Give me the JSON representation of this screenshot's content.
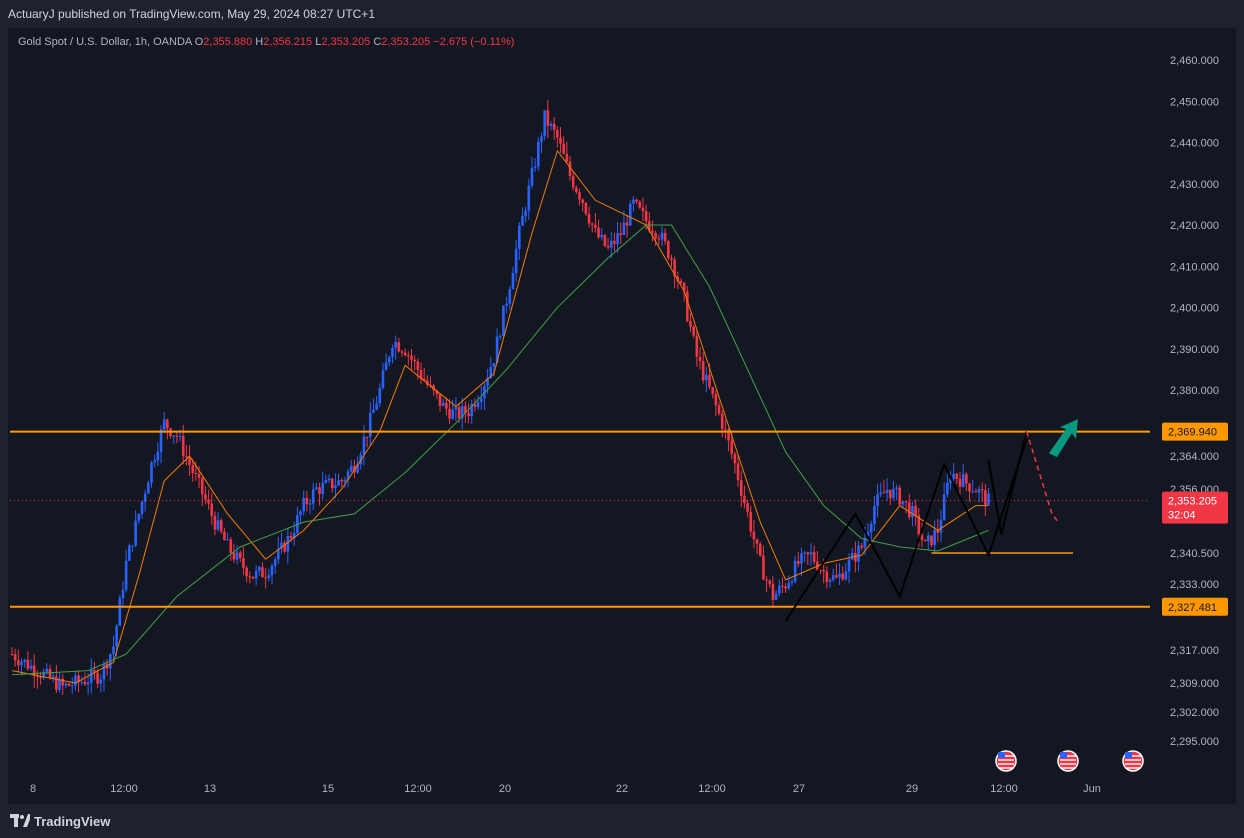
{
  "header": {
    "publisher_line": "ActuaryJ published on TradingView.com, May 29, 2024 08:27 UTC+1"
  },
  "legend": {
    "symbol": "Gold Spot / U.S. Dollar, 1h, OANDA",
    "o_label": "O",
    "o_value": "2,355.880",
    "h_label": "H",
    "h_value": "2,356.215",
    "l_label": "L",
    "l_value": "2,353.205",
    "c_label": "C",
    "c_value": "2,353.205",
    "change": "−2.675 (−0.11%)"
  },
  "footer": {
    "brand": "TradingView"
  },
  "colors": {
    "up": "#2962ff",
    "down": "#f23645",
    "ema_fast": "#f57c00",
    "ema_slow": "#43a047",
    "level": "#ff9800",
    "arrow_up": "#089981"
  },
  "chart_data": {
    "type": "candlestick",
    "title": "Gold Spot / U.S. Dollar, 1h, OANDA",
    "ylim": [
      2290,
      2465
    ],
    "price_axis": [
      {
        "v": 2460,
        "label": "2,460.000"
      },
      {
        "v": 2450,
        "label": "2,450.000"
      },
      {
        "v": 2440,
        "label": "2,440.000"
      },
      {
        "v": 2430,
        "label": "2,430.000"
      },
      {
        "v": 2420,
        "label": "2,420.000"
      },
      {
        "v": 2410,
        "label": "2,410.000"
      },
      {
        "v": 2400,
        "label": "2,400.000"
      },
      {
        "v": 2390,
        "label": "2,390.000"
      },
      {
        "v": 2380,
        "label": "2,380.000"
      },
      {
        "v": 2364,
        "label": "2,364.000"
      },
      {
        "v": 2356,
        "label": "2,356.000"
      },
      {
        "v": 2340.5,
        "label": "2,340.500"
      },
      {
        "v": 2333,
        "label": "2,333.000"
      },
      {
        "v": 2317,
        "label": "2,317.000"
      },
      {
        "v": 2309,
        "label": "2,309.000"
      },
      {
        "v": 2302,
        "label": "2,302.000"
      },
      {
        "v": 2295,
        "label": "2,295.000"
      }
    ],
    "time_axis": [
      "8",
      "12:00",
      "13",
      "15",
      "12:00",
      "20",
      "22",
      "12:00",
      "27",
      "29",
      "12:00",
      "Jun"
    ],
    "levels": [
      {
        "name": "resistance",
        "value": 2369.94,
        "label": "2,369.940"
      },
      {
        "name": "support",
        "value": 2327.481,
        "label": "2,327.481"
      },
      {
        "name": "neckline",
        "value": 2340.5
      }
    ],
    "last_price": {
      "value": 2353.205,
      "label": "2,353.205",
      "countdown": "32:04"
    },
    "price_path": [
      [
        0,
        2316
      ],
      [
        2,
        2314
      ],
      [
        4,
        2312
      ],
      [
        6,
        2310
      ],
      [
        8,
        2308
      ],
      [
        10,
        2309
      ],
      [
        12,
        2310
      ],
      [
        14,
        2311
      ],
      [
        16,
        2318
      ],
      [
        18,
        2338
      ],
      [
        20,
        2350
      ],
      [
        22,
        2362
      ],
      [
        24,
        2372
      ],
      [
        26,
        2369
      ],
      [
        28,
        2362
      ],
      [
        30,
        2355
      ],
      [
        32,
        2348
      ],
      [
        34,
        2342
      ],
      [
        36,
        2338
      ],
      [
        38,
        2335
      ],
      [
        40,
        2336
      ],
      [
        42,
        2340
      ],
      [
        44,
        2345
      ],
      [
        46,
        2352
      ],
      [
        48,
        2356
      ],
      [
        50,
        2357
      ],
      [
        52,
        2358
      ],
      [
        54,
        2362
      ],
      [
        56,
        2370
      ],
      [
        58,
        2380
      ],
      [
        60,
        2392
      ],
      [
        62,
        2390
      ],
      [
        64,
        2385
      ],
      [
        66,
        2380
      ],
      [
        68,
        2376
      ],
      [
        70,
        2374
      ],
      [
        72,
        2375
      ],
      [
        74,
        2380
      ],
      [
        76,
        2388
      ],
      [
        78,
        2402
      ],
      [
        80,
        2418
      ],
      [
        82,
        2432
      ],
      [
        84,
        2446
      ],
      [
        86,
        2441
      ],
      [
        88,
        2432
      ],
      [
        90,
        2426
      ],
      [
        92,
        2418
      ],
      [
        94,
        2414
      ],
      [
        96,
        2418
      ],
      [
        98,
        2425
      ],
      [
        100,
        2421
      ],
      [
        102,
        2418
      ],
      [
        104,
        2412
      ],
      [
        106,
        2402
      ],
      [
        108,
        2388
      ],
      [
        110,
        2380
      ],
      [
        112,
        2372
      ],
      [
        114,
        2362
      ],
      [
        116,
        2350
      ],
      [
        118,
        2338
      ],
      [
        120,
        2330
      ],
      [
        122,
        2333
      ],
      [
        124,
        2338
      ],
      [
        126,
        2340
      ],
      [
        128,
        2336
      ],
      [
        130,
        2334
      ],
      [
        132,
        2338
      ],
      [
        134,
        2342
      ],
      [
        136,
        2352
      ],
      [
        138,
        2356
      ],
      [
        140,
        2354
      ],
      [
        142,
        2350
      ],
      [
        144,
        2342
      ],
      [
        146,
        2346
      ],
      [
        148,
        2360
      ],
      [
        150,
        2358
      ],
      [
        152,
        2356
      ],
      [
        154,
        2353
      ]
    ],
    "ema_fast_path": [
      [
        0,
        2312
      ],
      [
        10,
        2309
      ],
      [
        16,
        2314
      ],
      [
        20,
        2335
      ],
      [
        24,
        2358
      ],
      [
        28,
        2364
      ],
      [
        34,
        2350
      ],
      [
        40,
        2339
      ],
      [
        46,
        2346
      ],
      [
        52,
        2356
      ],
      [
        58,
        2370
      ],
      [
        62,
        2386
      ],
      [
        70,
        2376
      ],
      [
        76,
        2384
      ],
      [
        82,
        2418
      ],
      [
        86,
        2438
      ],
      [
        92,
        2426
      ],
      [
        100,
        2420
      ],
      [
        106,
        2404
      ],
      [
        112,
        2376
      ],
      [
        118,
        2348
      ],
      [
        122,
        2334
      ],
      [
        128,
        2338
      ],
      [
        134,
        2340
      ],
      [
        140,
        2352
      ],
      [
        146,
        2346
      ],
      [
        152,
        2352
      ],
      [
        154,
        2352
      ]
    ],
    "ema_slow_path": [
      [
        0,
        2311
      ],
      [
        12,
        2312
      ],
      [
        18,
        2316
      ],
      [
        26,
        2330
      ],
      [
        36,
        2342
      ],
      [
        46,
        2348
      ],
      [
        54,
        2350
      ],
      [
        62,
        2360
      ],
      [
        70,
        2372
      ],
      [
        78,
        2385
      ],
      [
        86,
        2400
      ],
      [
        94,
        2412
      ],
      [
        100,
        2420
      ],
      [
        104,
        2420
      ],
      [
        110,
        2405
      ],
      [
        116,
        2385
      ],
      [
        122,
        2365
      ],
      [
        128,
        2352
      ],
      [
        134,
        2344
      ],
      [
        140,
        2342
      ],
      [
        146,
        2341
      ],
      [
        154,
        2346
      ]
    ],
    "projection_up": [
      [
        120,
        2325
      ],
      [
        134,
        2350
      ],
      [
        140,
        2330
      ],
      [
        154,
        2363
      ],
      [
        156,
        2345
      ],
      [
        160,
        2370
      ]
    ],
    "projection_down": [
      [
        160,
        2370
      ],
      [
        164,
        2350
      ],
      [
        165,
        2348
      ]
    ],
    "zigzag_pattern": [
      [
        122,
        2324
      ],
      [
        133,
        2350
      ],
      [
        140,
        2330
      ],
      [
        147,
        2362
      ],
      [
        154,
        2340
      ],
      [
        160,
        2368
      ]
    ]
  }
}
